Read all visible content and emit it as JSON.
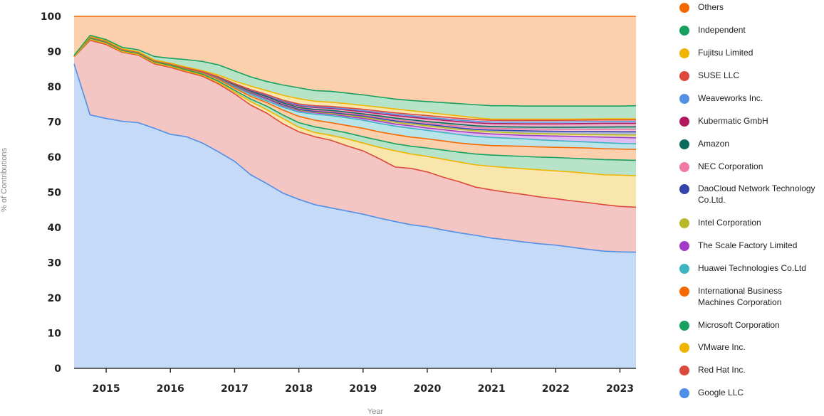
{
  "chart_data": {
    "type": "area",
    "stacked": true,
    "x": [
      2014.5,
      2014.75,
      2015.0,
      2015.25,
      2015.5,
      2015.75,
      2016.0,
      2016.25,
      2016.5,
      2016.75,
      2017.0,
      2017.25,
      2017.5,
      2017.75,
      2018.0,
      2018.25,
      2018.5,
      2018.75,
      2019.0,
      2019.25,
      2019.5,
      2019.75,
      2020.0,
      2020.25,
      2020.5,
      2020.75,
      2021.0,
      2021.25,
      2021.5,
      2021.75,
      2022.0,
      2022.25,
      2022.5,
      2022.75,
      2023.0,
      2023.25
    ],
    "xlabel": "Year",
    "ylabel": "% of Contributions",
    "xlim": [
      2014.5,
      2023.25
    ],
    "ylim": [
      0,
      100
    ],
    "x_ticks": [
      "2015",
      "2016",
      "2017",
      "2018",
      "2019",
      "2020",
      "2021",
      "2022",
      "2023"
    ],
    "y_ticks": [
      "0",
      "10",
      "20",
      "30",
      "40",
      "50",
      "60",
      "70",
      "80",
      "90",
      "100"
    ],
    "grid": true,
    "legend_position": "right",
    "series_bottom_to_top_cumulative": [
      {
        "name": "Google LLC",
        "color": "#4f8fe8",
        "fill": "#c5daf7",
        "values": [
          86.5,
          72,
          71,
          70.2,
          69.8,
          68.2,
          66.5,
          65.8,
          64,
          61.5,
          58.8,
          55,
          52.5,
          49.8,
          48,
          46.5,
          45.6,
          44.7,
          43.8,
          42.7,
          41.7,
          40.8,
          40.2,
          39.3,
          38.5,
          37.8,
          37,
          36.5,
          35.9,
          35.4,
          35,
          34.4,
          33.8,
          33.3,
          33.1,
          33
        ]
      },
      {
        "name": "Red Hat Inc.",
        "color": "#dc4a3d",
        "fill": "#f3c6c3",
        "values": [
          88.5,
          93.2,
          92,
          89.8,
          89,
          86.5,
          85.5,
          84.2,
          83,
          80.8,
          78,
          74.8,
          72.5,
          69.5,
          67.2,
          65.8,
          64.8,
          63.2,
          61.8,
          59.6,
          57.2,
          56.8,
          55.8,
          54.3,
          53,
          51.5,
          50.7,
          50,
          49.4,
          48.7,
          48.2,
          47.6,
          47.1,
          46.5,
          46,
          45.8
        ]
      },
      {
        "name": "VMware Inc.",
        "color": "#f0b400",
        "fill": "#f9e6ac",
        "values": [
          88.5,
          93.5,
          92.3,
          90,
          89.2,
          86.8,
          85.8,
          84.5,
          83.3,
          81.2,
          78.5,
          75.8,
          73.5,
          71,
          68.5,
          67,
          66.2,
          65.2,
          64,
          62.8,
          61.8,
          60.9,
          60.2,
          59.4,
          58.6,
          57.8,
          57.4,
          57,
          56.7,
          56.4,
          56.1,
          55.8,
          55.4,
          55,
          54.9,
          54.7
        ]
      },
      {
        "name": "Microsoft Corporation",
        "color": "#18a060",
        "fill": "#b7e3c8",
        "values": [
          88.6,
          93.8,
          92.6,
          90.3,
          89.5,
          87.1,
          86.1,
          84.8,
          83.6,
          81.6,
          79,
          76.5,
          74.5,
          72,
          69.8,
          68.6,
          67.8,
          66.9,
          65.8,
          64.8,
          63.8,
          63.1,
          62.6,
          62,
          61.4,
          60.9,
          60.6,
          60.4,
          60.2,
          60,
          59.9,
          59.7,
          59.5,
          59.3,
          59.2,
          59.1
        ]
      },
      {
        "name": "International Business Machines Corporation",
        "color": "#f56a00",
        "fill": "#fdd0ad",
        "values": [
          88.6,
          94,
          92.8,
          90.5,
          89.7,
          87.3,
          86.4,
          85.1,
          84,
          82.1,
          79.6,
          77.3,
          75.5,
          73.4,
          71.6,
          70.5,
          69.8,
          69,
          68.2,
          67.2,
          66.4,
          65.7,
          65.2,
          64.6,
          64,
          63.6,
          63.3,
          63.2,
          63.1,
          62.9,
          62.8,
          62.7,
          62.6,
          62.4,
          62.3,
          62.2
        ]
      },
      {
        "name": "Huawei Technologies Co.Ltd",
        "color": "#3cb5c0",
        "fill": "#b9e5ea",
        "values": [
          88.6,
          94.1,
          92.9,
          90.6,
          89.8,
          87.4,
          86.5,
          85.3,
          84.2,
          82.4,
          80,
          77.8,
          76,
          74.2,
          72.8,
          72.2,
          71.8,
          71.2,
          70.5,
          69.6,
          68.8,
          68.2,
          67.6,
          67,
          66.4,
          65.9,
          65.6,
          65.4,
          65.2,
          64.9,
          64.7,
          64.5,
          64.3,
          64.1,
          63.9,
          63.8
        ]
      },
      {
        "name": "The Scale Factory Limited",
        "color": "#a33bc8",
        "fill": "#dfbdf0",
        "values": [
          88.6,
          94.15,
          92.95,
          90.65,
          89.85,
          87.45,
          86.55,
          85.35,
          84.25,
          82.5,
          80.2,
          78.2,
          76.5,
          74.6,
          73.2,
          72.6,
          72.2,
          71.6,
          71,
          70.2,
          69.4,
          68.9,
          68.3,
          67.8,
          67.3,
          66.9,
          66.6,
          66.4,
          66.2,
          66.1,
          66,
          65.9,
          65.8,
          65.7,
          65.6,
          65.5
        ]
      },
      {
        "name": "Intel Corporation",
        "color": "#b8b828",
        "fill": "#e4e4a8",
        "values": [
          88.6,
          94.2,
          93,
          90.7,
          89.9,
          87.5,
          86.6,
          85.4,
          84.3,
          82.55,
          80.3,
          78.35,
          76.7,
          74.8,
          73.4,
          72.8,
          72.45,
          71.9,
          71.35,
          70.6,
          69.9,
          69.4,
          68.9,
          68.4,
          67.9,
          67.5,
          67.2,
          67,
          66.8,
          66.7,
          66.6,
          66.5,
          66.45,
          66.4,
          66.35,
          66.3
        ]
      },
      {
        "name": "DaoCloud Network Technology Co.Ltd.",
        "color": "#3344aa",
        "fill": "#b3b8e0",
        "values": [
          88.6,
          94.2,
          93,
          90.7,
          89.9,
          87.5,
          86.6,
          85.4,
          84.3,
          82.6,
          80.4,
          78.45,
          76.8,
          74.95,
          73.6,
          73,
          72.7,
          72.2,
          71.7,
          71,
          70.3,
          69.8,
          69.3,
          68.8,
          68.3,
          67.9,
          67.7,
          67.6,
          67.5,
          67.4,
          67.35,
          67.3,
          67.3,
          67.25,
          67.2,
          67.2
        ]
      },
      {
        "name": "NEC Corporation",
        "color": "#f07aa5",
        "fill": "#fac7da",
        "values": [
          88.6,
          94.2,
          93,
          90.7,
          89.9,
          87.5,
          86.6,
          85.4,
          84.3,
          82.65,
          80.5,
          78.6,
          77,
          75.2,
          73.9,
          73.3,
          73,
          72.5,
          72,
          71.3,
          70.7,
          70.2,
          69.7,
          69.2,
          68.8,
          68.4,
          68.2,
          68.1,
          68,
          67.95,
          67.9,
          67.9,
          67.9,
          67.9,
          67.9,
          67.9
        ]
      },
      {
        "name": "Amazon",
        "color": "#0b6a5a",
        "fill": "#a8cfc7",
        "values": [
          88.6,
          94.2,
          93,
          90.7,
          89.9,
          87.5,
          86.6,
          85.4,
          84.3,
          82.7,
          80.6,
          78.75,
          77.2,
          75.4,
          74.1,
          73.55,
          73.3,
          72.8,
          72.3,
          71.7,
          71.1,
          70.6,
          70.1,
          69.7,
          69.3,
          68.9,
          68.7,
          68.6,
          68.55,
          68.5,
          68.5,
          68.5,
          68.55,
          68.55,
          68.6,
          68.6
        ]
      },
      {
        "name": "Kubermatic GmbH",
        "color": "#b5175e",
        "fill": "#e9b3c9",
        "values": [
          88.6,
          94.2,
          93,
          90.7,
          89.9,
          87.5,
          86.6,
          85.4,
          84.3,
          82.8,
          80.8,
          79,
          77.5,
          75.8,
          74.6,
          74.1,
          73.9,
          73.4,
          72.9,
          72.35,
          71.8,
          71.35,
          70.9,
          70.5,
          70.1,
          69.75,
          69.55,
          69.5,
          69.45,
          69.45,
          69.45,
          69.5,
          69.55,
          69.6,
          69.6,
          69.6
        ]
      },
      {
        "name": "Weaveworks Inc.",
        "color": "#5590e5",
        "fill": "#c3d7f5",
        "values": [
          88.6,
          94.2,
          93,
          90.7,
          89.9,
          87.5,
          86.6,
          85.4,
          84.3,
          82.8,
          80.85,
          79.1,
          77.6,
          75.95,
          74.8,
          74.3,
          74.1,
          73.65,
          73.2,
          72.7,
          72.2,
          71.75,
          71.3,
          70.9,
          70.5,
          70.2,
          70,
          69.95,
          69.95,
          69.95,
          69.95,
          70,
          70.05,
          70.1,
          70.1,
          70.1
        ]
      },
      {
        "name": "SUSE LLC",
        "color": "#dc4a3d",
        "fill": "#f3c6c3",
        "values": [
          88.6,
          94.2,
          93,
          90.7,
          89.9,
          87.5,
          86.6,
          85.4,
          84.3,
          82.8,
          80.9,
          79.2,
          77.8,
          76.2,
          75.1,
          74.6,
          74.4,
          74,
          73.6,
          73.1,
          72.6,
          72.2,
          71.8,
          71.4,
          71,
          70.7,
          70.5,
          70.45,
          70.45,
          70.45,
          70.45,
          70.5,
          70.55,
          70.6,
          70.6,
          70.6
        ]
      },
      {
        "name": "Fujitsu Limited",
        "color": "#f0b400",
        "fill": "#f9e6ac",
        "values": [
          88.6,
          94.3,
          93.1,
          90.8,
          90,
          87.6,
          86.7,
          85.6,
          84.6,
          83.3,
          81.6,
          80.2,
          78.9,
          77.6,
          76.6,
          75.9,
          75.6,
          75.2,
          74.7,
          74.2,
          73.7,
          73.2,
          72.7,
          72.2,
          71.7,
          71.2,
          70.8,
          70.8,
          70.8,
          70.8,
          70.8,
          70.8,
          70.85,
          70.9,
          70.9,
          70.9
        ]
      },
      {
        "name": "Independent",
        "color": "#18a060",
        "fill": "#b7e3c8",
        "values": [
          88.9,
          94.6,
          93.4,
          91.2,
          90.5,
          88.6,
          88.1,
          87.7,
          87.2,
          86.2,
          84.5,
          82.8,
          81.5,
          80.5,
          79.7,
          78.9,
          78.7,
          78.2,
          77.7,
          77.1,
          76.5,
          76.1,
          75.8,
          75.5,
          75.2,
          74.9,
          74.6,
          74.6,
          74.5,
          74.5,
          74.5,
          74.5,
          74.5,
          74.5,
          74.5,
          74.6
        ]
      },
      {
        "name": "Others",
        "color": "#f56a00",
        "fill": "#fdd0ad",
        "values": [
          100,
          100,
          100,
          100,
          100,
          100,
          100,
          100,
          100,
          100,
          100,
          100,
          100,
          100,
          100,
          100,
          100,
          100,
          100,
          100,
          100,
          100,
          100,
          100,
          100,
          100,
          100,
          100,
          100,
          100,
          100,
          100,
          100,
          100,
          100,
          100
        ]
      }
    ],
    "legend": [
      {
        "label": "Others",
        "color": "#f56a00"
      },
      {
        "label": "Independent",
        "color": "#18a060"
      },
      {
        "label": "Fujitsu Limited",
        "color": "#f0b400"
      },
      {
        "label": "SUSE LLC",
        "color": "#dc4a3d"
      },
      {
        "label": "Weaveworks Inc.",
        "color": "#5590e5"
      },
      {
        "label": "Kubermatic GmbH",
        "color": "#b5175e"
      },
      {
        "label": "Amazon",
        "color": "#0b6a5a"
      },
      {
        "label": "NEC Corporation",
        "color": "#f07aa5"
      },
      {
        "label": "DaoCloud Network Technology Co.Ltd.",
        "color": "#3344aa"
      },
      {
        "label": "Intel Corporation",
        "color": "#b8b828"
      },
      {
        "label": "The Scale Factory Limited",
        "color": "#a33bc8"
      },
      {
        "label": "Huawei Technologies Co.Ltd",
        "color": "#3cb5c0"
      },
      {
        "label": "International Business Machines Corporation",
        "color": "#f56a00"
      },
      {
        "label": "Microsoft Corporation",
        "color": "#18a060"
      },
      {
        "label": "VMware Inc.",
        "color": "#f0b400"
      },
      {
        "label": "Red Hat Inc.",
        "color": "#dc4a3d"
      },
      {
        "label": "Google LLC",
        "color": "#4f8fe8"
      }
    ]
  }
}
